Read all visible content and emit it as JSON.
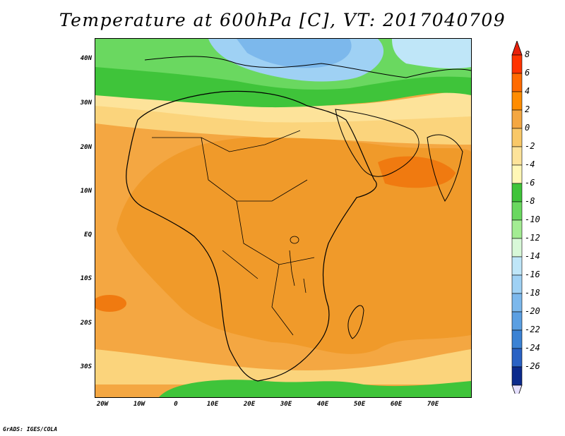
{
  "title": "Temperature at 600hPa [C], VT: 2017040709",
  "lat_labels": [
    "40N",
    "30N",
    "20N",
    "10N",
    "EQ",
    "10S",
    "20S",
    "30S"
  ],
  "lon_labels": [
    "20W",
    "10W",
    "0",
    "10E",
    "20E",
    "30E",
    "40E",
    "50E",
    "60E",
    "70E"
  ],
  "colorbar": {
    "labels": [
      "8",
      "6",
      "4",
      "2",
      "0",
      "-2",
      "-4",
      "-6",
      "-8",
      "-10",
      "-12",
      "-14",
      "-16",
      "-18",
      "-20",
      "-22",
      "-24",
      "-26"
    ],
    "colors": [
      "#ff3300",
      "#ff6a00",
      "#ff8c00",
      "#f4a742",
      "#f9c868",
      "#fde39a",
      "#fff7b6",
      "#3fc43a",
      "#6ad860",
      "#a3ec93",
      "#d8f8d8",
      "#bfe6f8",
      "#9fd1f4",
      "#7cb8ec",
      "#5b9fe2",
      "#3b82d4",
      "#2a62c4",
      "#0b2a8c"
    ],
    "top_arrow_color": "#e8200a",
    "bottom_arrow_color": "#e6e0ff"
  },
  "credit": "GrADS: IGES/COLA"
}
